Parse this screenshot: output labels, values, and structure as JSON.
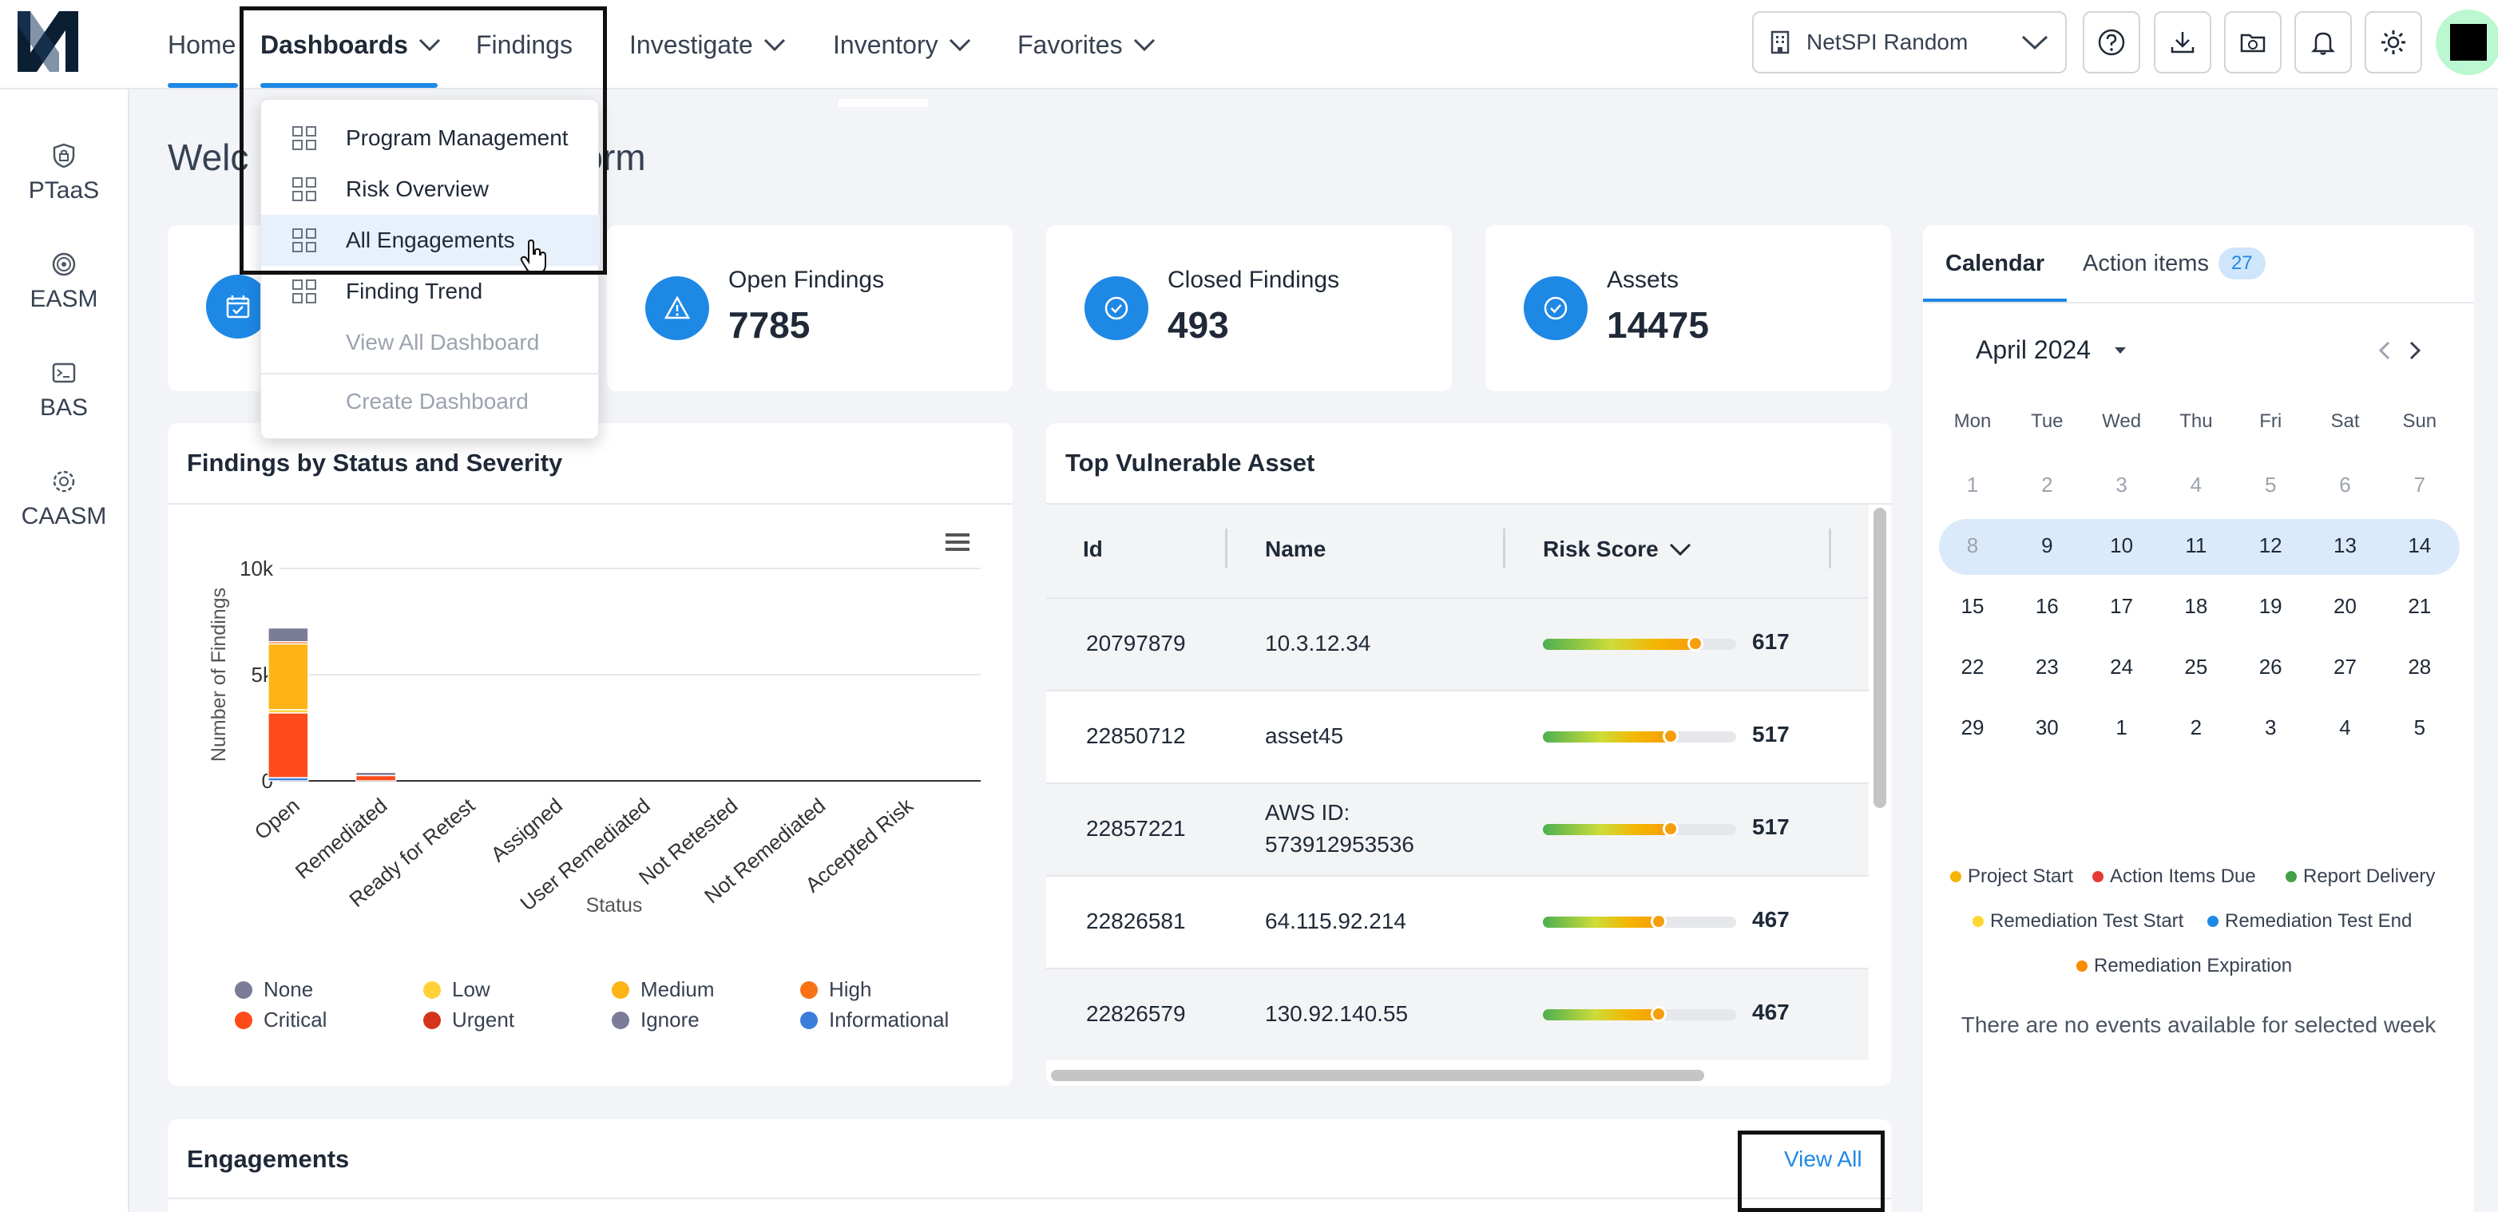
{
  "nav": {
    "home": "Home",
    "dashboards": "Dashboards",
    "findings": "Findings",
    "investigate": "Investigate",
    "inventory": "Inventory",
    "favorites": "Favorites",
    "tenant": "NetSPI Random"
  },
  "sidebar": {
    "items": [
      {
        "label": "PTaaS",
        "icon": "ptaas-icon"
      },
      {
        "label": "EASM",
        "icon": "easm-icon"
      },
      {
        "label": "BAS",
        "icon": "bas-icon"
      },
      {
        "label": "CAASM",
        "icon": "caasm-icon"
      }
    ]
  },
  "welcome": {
    "title_left": "Welc",
    "title_right": "orm"
  },
  "dropdown": {
    "items": [
      {
        "label": "Program Management"
      },
      {
        "label": "Risk Overview"
      },
      {
        "label": "All Engagements"
      },
      {
        "label": "Finding Trend"
      }
    ],
    "view_all": "View All Dashboard",
    "create": "Create Dashboard"
  },
  "stats": {
    "open": {
      "label": "Open Findings",
      "value": "7785"
    },
    "closed": {
      "label": "Closed Findings",
      "value": "493"
    },
    "assets": {
      "label": "Assets",
      "value": "14475"
    }
  },
  "findings_panel": {
    "title": "Findings by Status and Severity"
  },
  "chart_data": {
    "type": "bar",
    "stacked": true,
    "ylabel": "Number of Findings",
    "xlabel": "Status",
    "ylim": [
      0,
      10000
    ],
    "yticks": [
      "10k",
      "5k",
      "0"
    ],
    "categories": [
      "Open",
      "Remediated",
      "Ready for Retest",
      "Assigned",
      "User Remediated",
      "Not Retested",
      "Not Remediated",
      "Accepted Risk"
    ],
    "series": [
      {
        "name": "Informational",
        "color": "#3b7ddd",
        "values": [
          150,
          0,
          0,
          0,
          0,
          0,
          0,
          0
        ]
      },
      {
        "name": "Critical",
        "color": "#ff4a1c",
        "values": [
          3050,
          250,
          0,
          0,
          0,
          0,
          0,
          0
        ]
      },
      {
        "name": "Low",
        "color": "#ffd23a",
        "values": [
          150,
          0,
          0,
          0,
          0,
          0,
          0,
          0
        ]
      },
      {
        "name": "Medium",
        "color": "#fdb414",
        "values": [
          3100,
          0,
          0,
          0,
          0,
          0,
          0,
          0
        ]
      },
      {
        "name": "High",
        "color": "#f97316",
        "values": [
          100,
          0,
          0,
          0,
          0,
          0,
          0,
          0
        ]
      },
      {
        "name": "None",
        "color": "#7a7c98",
        "values": [
          650,
          150,
          0,
          0,
          0,
          0,
          0,
          0
        ]
      }
    ],
    "legend": [
      {
        "name": "None",
        "color": "#7a7c98"
      },
      {
        "name": "Low",
        "color": "#ffd23a"
      },
      {
        "name": "Medium",
        "color": "#fdb414"
      },
      {
        "name": "High",
        "color": "#f97316"
      },
      {
        "name": "Critical",
        "color": "#ff4a1c"
      },
      {
        "name": "Urgent",
        "color": "#d6341a"
      },
      {
        "name": "Ignore",
        "color": "#7a7c98"
      },
      {
        "name": "Informational",
        "color": "#3b7ddd"
      }
    ]
  },
  "asset_panel": {
    "title": "Top Vulnerable Asset",
    "columns": {
      "id": "Id",
      "name": "Name",
      "risk": "Risk Score"
    },
    "max_score": 1000,
    "rows": [
      {
        "id": "20797879",
        "name": "10.3.12.34",
        "name2": "",
        "score": 617
      },
      {
        "id": "22850712",
        "name": "asset45",
        "name2": "",
        "score": 517
      },
      {
        "id": "22857221",
        "name": "AWS ID:",
        "name2": "573912953536",
        "score": 517
      },
      {
        "id": "22826581",
        "name": "64.115.92.214",
        "name2": "",
        "score": 467
      },
      {
        "id": "22826579",
        "name": "130.92.140.55",
        "name2": "",
        "score": 467
      }
    ]
  },
  "calendar": {
    "tab_calendar": "Calendar",
    "tab_actions": "Action items",
    "action_count": "27",
    "month": "April 2024",
    "weekdays": [
      "Mon",
      "Tue",
      "Wed",
      "Thu",
      "Fri",
      "Sat",
      "Sun"
    ],
    "weeks": [
      [
        {
          "d": "1",
          "m": true
        },
        {
          "d": "2",
          "m": true
        },
        {
          "d": "3",
          "m": true
        },
        {
          "d": "4",
          "m": true
        },
        {
          "d": "5",
          "m": true
        },
        {
          "d": "6",
          "m": true
        },
        {
          "d": "7",
          "m": true
        }
      ],
      [
        {
          "d": "8",
          "m": true
        },
        {
          "d": "9",
          "m": false
        },
        {
          "d": "10",
          "m": false
        },
        {
          "d": "11",
          "m": false
        },
        {
          "d": "12",
          "m": false
        },
        {
          "d": "13",
          "m": false
        },
        {
          "d": "14",
          "m": false
        }
      ],
      [
        {
          "d": "15",
          "m": false
        },
        {
          "d": "16",
          "m": false
        },
        {
          "d": "17",
          "m": false
        },
        {
          "d": "18",
          "m": false
        },
        {
          "d": "19",
          "m": false
        },
        {
          "d": "20",
          "m": false
        },
        {
          "d": "21",
          "m": false
        }
      ],
      [
        {
          "d": "22",
          "m": false
        },
        {
          "d": "23",
          "m": false
        },
        {
          "d": "24",
          "m": false
        },
        {
          "d": "25",
          "m": false
        },
        {
          "d": "26",
          "m": false
        },
        {
          "d": "27",
          "m": false
        },
        {
          "d": "28",
          "m": false
        }
      ],
      [
        {
          "d": "29",
          "m": false
        },
        {
          "d": "30",
          "m": false
        },
        {
          "d": "1",
          "m": false
        },
        {
          "d": "2",
          "m": false
        },
        {
          "d": "3",
          "m": false
        },
        {
          "d": "4",
          "m": false
        },
        {
          "d": "5",
          "m": false
        }
      ]
    ],
    "legend": [
      {
        "name": "Project Start",
        "color": "#f5b400"
      },
      {
        "name": "Action Items Due",
        "color": "#e53935"
      },
      {
        "name": "Report Delivery",
        "color": "#43a047"
      },
      {
        "name": "Remediation Test Start",
        "color": "#fdd835"
      },
      {
        "name": "Remediation Test End",
        "color": "#1e88e5"
      },
      {
        "name": "Remediation Expiration",
        "color": "#fb8c00"
      }
    ],
    "empty": "There are no events available for selected week"
  },
  "engagements": {
    "title": "Engagements",
    "view_all": "View All"
  },
  "colors": {
    "accent": "#1e88e5"
  }
}
